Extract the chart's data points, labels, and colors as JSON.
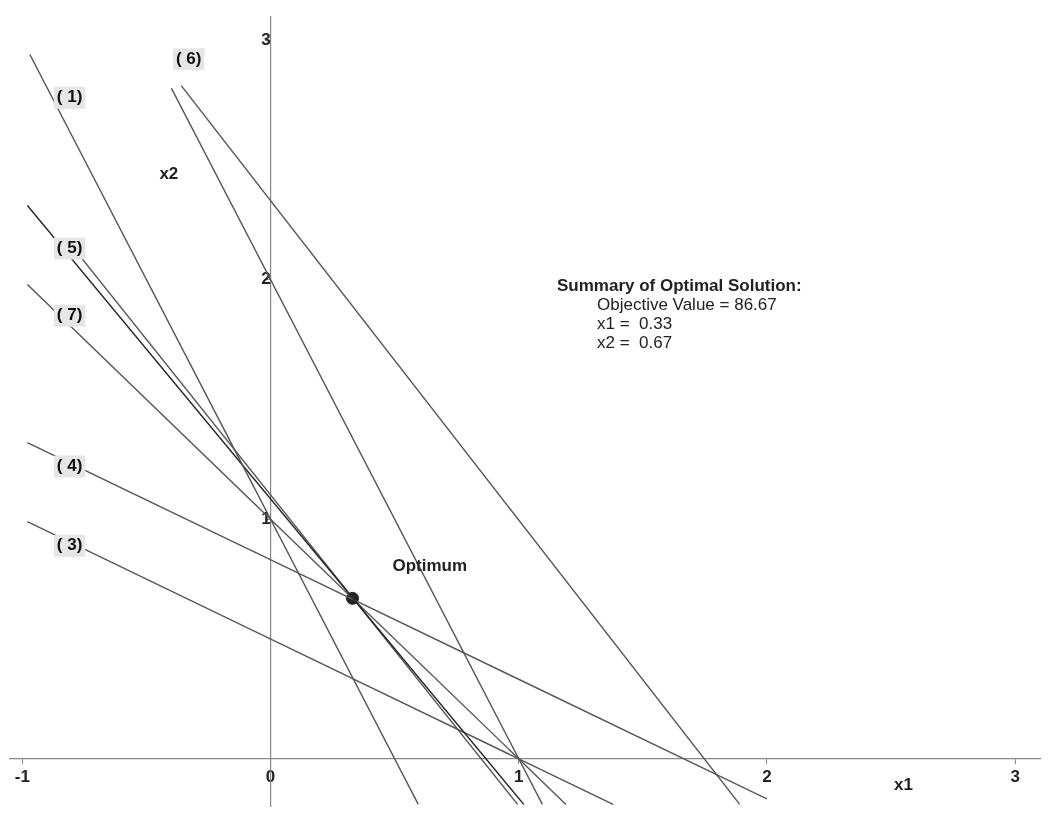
{
  "chart_data": {
    "type": "line",
    "xlabel": "x1",
    "ylabel": "x2",
    "xlim": [
      -1.05,
      3.1
    ],
    "ylim": [
      -0.2,
      3.1
    ],
    "xticks": [
      -1,
      0,
      1,
      2,
      3
    ],
    "yticks": [
      {
        "value": 0,
        "label": null
      },
      1,
      2,
      3
    ],
    "grid": false,
    "legend": false,
    "line_style": "solid",
    "series": [
      {
        "color": "#555555",
        "x": [
          -0.97,
          0.595
        ],
        "values": [
          2.94,
          -0.19
        ]
      },
      {
        "color": "#555555",
        "x": [
          -0.4,
          1.095
        ],
        "values": [
          2.8,
          -0.19
        ]
      },
      {
        "color": "#555555",
        "x": [
          -0.36,
          1.89
        ],
        "values": [
          2.81,
          -0.19
        ]
      },
      {
        "color": "#222222",
        "x": [
          -0.98,
          1.02
        ],
        "values": [
          2.31,
          -0.19
        ]
      },
      {
        "color": "#555555",
        "x": [
          -0.8,
          0.995
        ],
        "values": [
          2.14,
          -0.19
        ]
      },
      {
        "color": "#555555",
        "x": [
          -0.98,
          1.19
        ],
        "values": [
          1.98,
          -0.19
        ]
      },
      {
        "color": "#555555",
        "x": [
          -0.98,
          2.0
        ],
        "values": [
          1.32,
          -0.167
        ]
      },
      {
        "color": "#555555",
        "x": [
          -0.98,
          1.38
        ],
        "values": [
          0.99,
          -0.19
        ]
      },
      {
        "type": "scatter",
        "marker": "circle",
        "color": "#222222",
        "x": [
          0.33
        ],
        "values": [
          0.67
        ]
      }
    ],
    "annotations": [
      {
        "text": "( 1)",
        "x": -0.81,
        "y": 2.76
      },
      {
        "text": "( 6)",
        "x": -0.33,
        "y": 2.92
      },
      {
        "text": "( 5)",
        "x": -0.81,
        "y": 2.13
      },
      {
        "text": "( 7)",
        "x": -0.81,
        "y": 1.85
      },
      {
        "text": "( 4)",
        "x": -0.81,
        "y": 1.22
      },
      {
        "text": "( 3)",
        "x": -0.81,
        "y": 0.89
      },
      {
        "text": "Optimum",
        "x": 0.33,
        "y": 0.67
      },
      "Summary of Optimal Solution:",
      "Objective Value = 86.67",
      "x1 =  0.33",
      "x2 =  0.67"
    ]
  }
}
